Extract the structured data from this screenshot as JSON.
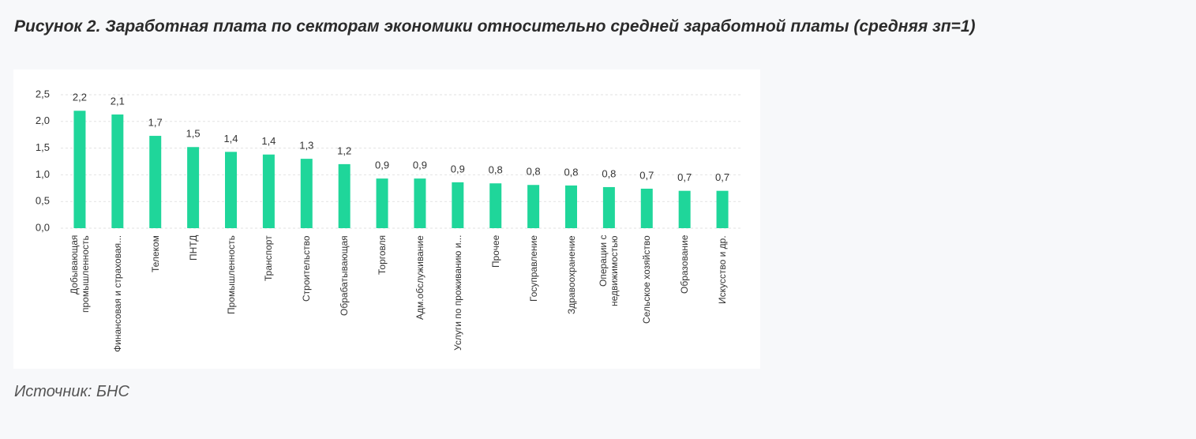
{
  "chart_data": {
    "type": "bar",
    "title": "Рисунок 2. Заработная плата по секторам экономики относительно средней заработной платы (средняя зп=1)",
    "source": "Источник: БНС",
    "categories": [
      "Добывающая промышленность",
      "Финансовая и страховая...",
      "Телеком",
      "ПНТД",
      "Промышленность",
      "Транспорт",
      "Строительство",
      "Обрабатывающая",
      "Торговля",
      "Адм.обслуживание",
      "Услуги по проживанию и...",
      "Прочее",
      "Госуправление",
      "Здравоохранение",
      "Операции с недвижимостью",
      "Сельское хозяйство",
      "Образование",
      "Искусство и др."
    ],
    "values": [
      2.2,
      2.13,
      1.73,
      1.52,
      1.43,
      1.38,
      1.3,
      1.2,
      0.93,
      0.93,
      0.86,
      0.84,
      0.81,
      0.8,
      0.77,
      0.74,
      0.7,
      0.7
    ],
    "value_labels": [
      "2,2",
      "2,1",
      "1,7",
      "1,5",
      "1,4",
      "1,4",
      "1,3",
      "1,2",
      "0,9",
      "0,9",
      "0,9",
      "0,8",
      "0,8",
      "0,8",
      "0,8",
      "0,7",
      "0,7",
      "0,7"
    ],
    "color": "#1fd69a",
    "ylim": [
      0,
      2.5
    ],
    "yticks": [
      {
        "value": 0,
        "label": "0,0"
      },
      {
        "value": 0.5,
        "label": "0,5"
      },
      {
        "value": 1,
        "label": "1,0"
      },
      {
        "value": 1.5,
        "label": "1,5"
      },
      {
        "value": 2,
        "label": "2,0"
      },
      {
        "value": 2.5,
        "label": "2,5"
      }
    ],
    "grid": true
  }
}
